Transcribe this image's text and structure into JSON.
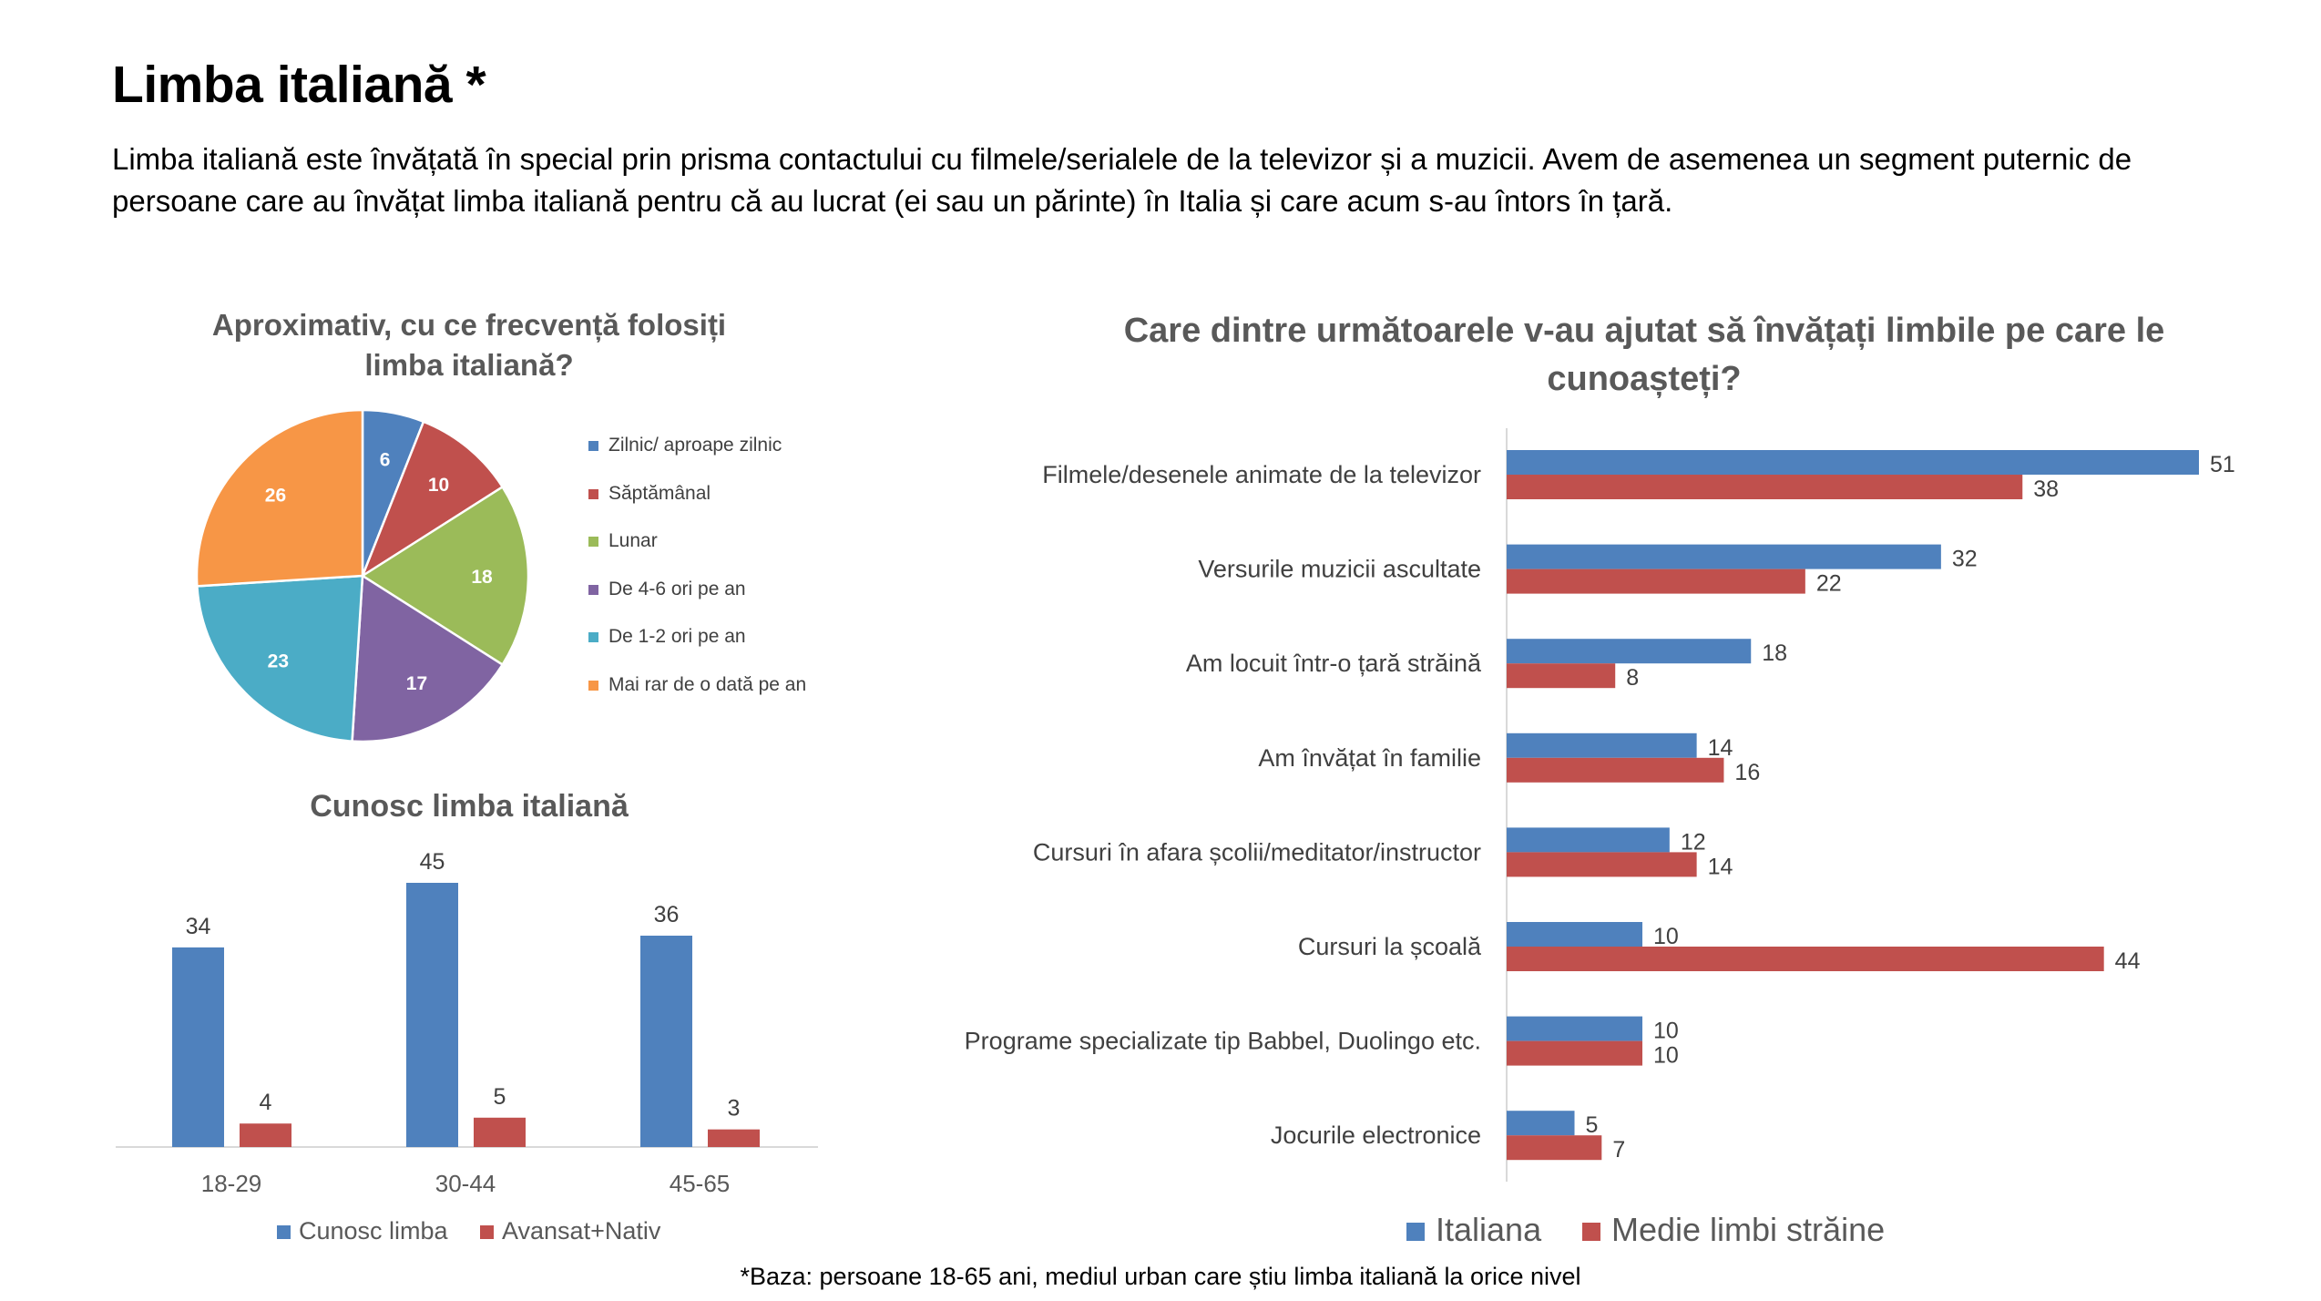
{
  "page": {
    "title": "Limba italiană *",
    "intro": "Limba italiană este învățată în special prin prisma contactului cu filmele/serialele de la televizor și a muzicii. Avem de asemenea un segment puternic de persoane care au învățat limba italiană pentru că au lucrat (ei sau un părinte) în Italia și care acum s-au întors în țară.",
    "footnote": "*Baza: persoane 18-65 ani, mediul urban care știu limba italiană la orice nivel"
  },
  "chart_data": [
    {
      "type": "pie",
      "title": "Aproximativ, cu ce frecvență folosiți limba italiană?",
      "categories": [
        "Zilnic/ aproape zilnic",
        "Săptămânal",
        "Lunar",
        "De 4-6 ori pe an",
        "De 1-2 ori pe an",
        "Mai rar de o dată pe an"
      ],
      "values": [
        6,
        10,
        18,
        17,
        23,
        26
      ],
      "colors": [
        "#4f81bd",
        "#c0504d",
        "#9bbb59",
        "#8064a2",
        "#4bacc6",
        "#f79646"
      ],
      "legend": "right"
    },
    {
      "type": "bar",
      "title": "Cunosc limba italiană",
      "categories": [
        "18-29",
        "30-44",
        "45-65"
      ],
      "series": [
        {
          "name": "Cunosc limba",
          "values": [
            34,
            45,
            36
          ],
          "color": "#4f81bd"
        },
        {
          "name": "Avansat+Nativ",
          "values": [
            4,
            5,
            3
          ],
          "color": "#c0504d"
        }
      ],
      "ylim": [
        0,
        50
      ],
      "grid": false,
      "legend": "bottom"
    },
    {
      "type": "bar",
      "orientation": "horizontal",
      "title": "Care dintre următoarele v-au ajutat să învățați limbile pe care le cunoașteți?",
      "categories": [
        "Filmele/desenele animate de la televizor",
        "Versurile muzicii ascultate",
        "Am locuit într-o țară străină",
        "Am învățat în familie",
        "Cursuri în afara școlii/meditator/instructor",
        "Cursuri la școală",
        "Programe specializate tip Babbel, Duolingo etc.",
        "Jocurile electronice"
      ],
      "series": [
        {
          "name": "Italiana",
          "values": [
            51,
            32,
            18,
            14,
            12,
            10,
            10,
            5
          ],
          "color": "#4f81bd"
        },
        {
          "name": "Medie limbi străine",
          "values": [
            38,
            22,
            8,
            16,
            14,
            44,
            10,
            7
          ],
          "color": "#c0504d"
        }
      ],
      "xlim": [
        0,
        55
      ],
      "grid": false,
      "legend": "bottom"
    }
  ]
}
